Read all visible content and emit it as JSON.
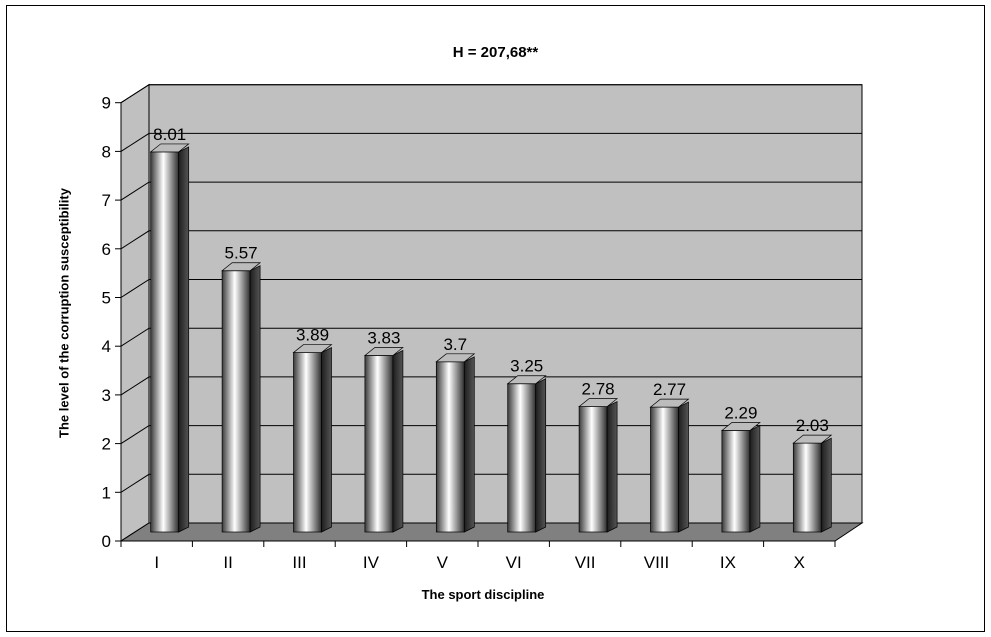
{
  "chart_data": {
    "type": "bar",
    "title": "H = 207,68**",
    "xlabel": "The sport discipline",
    "ylabel": "The level of the corruption susceptibility",
    "categories": [
      "I",
      "II",
      "III",
      "IV",
      "V",
      "VI",
      "VII",
      "VIII",
      "IX",
      "X"
    ],
    "values": [
      8.01,
      5.57,
      3.89,
      3.83,
      3.7,
      3.25,
      2.78,
      2.77,
      2.29,
      2.03
    ],
    "value_labels": [
      "8.01",
      "5.57",
      "3.89",
      "3.83",
      "3.7",
      "3.25",
      "2.78",
      "2.77",
      "2.29",
      "2.03"
    ],
    "yticks": [
      "0",
      "1",
      "2",
      "3",
      "4",
      "5",
      "6",
      "7",
      "8",
      "9"
    ],
    "ylim": [
      0,
      9
    ],
    "grid": true,
    "legend": "none",
    "colors": {
      "wall": "#c0c0c0",
      "floor": "#808080",
      "grid": "#000000",
      "bar_dark": "#333333",
      "bar_light": "#ffffff"
    }
  }
}
